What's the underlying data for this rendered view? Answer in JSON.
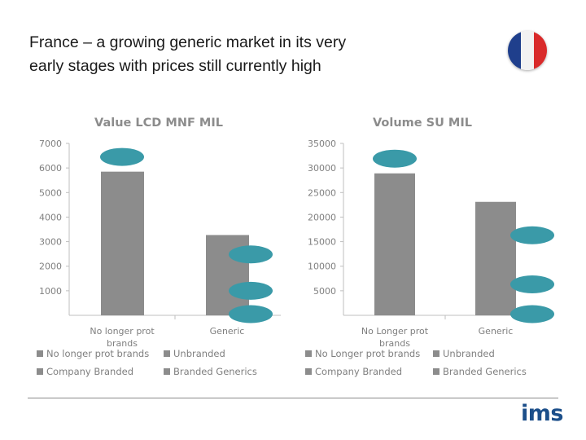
{
  "slide": {
    "title_line1": "France – a growing generic market in its very",
    "title_line2": "early stages with prices still currently high",
    "logo_text": "ims"
  },
  "flag": {
    "colors": [
      "#1f3f8c",
      "#f2f2f2",
      "#d92a2a"
    ]
  },
  "colors": {
    "bar": "#8c8c8c",
    "marker": "#3a9aa8",
    "axis": "#bfbfbf",
    "text": "#7f7f7f"
  },
  "chart_data": [
    {
      "type": "bar",
      "title": "Value LCD MNF MIL",
      "categories": [
        "No longer prot brands",
        "Generic"
      ],
      "category_lines": [
        [
          "No longer prot",
          "brands"
        ],
        [
          "Generic"
        ]
      ],
      "values": [
        5850,
        3270
      ],
      "ylim": [
        0,
        7000
      ],
      "yticks": [
        7000,
        6000,
        5000,
        4000,
        3000,
        2000,
        1000
      ],
      "legend": [
        "No longer prot brands",
        "Unbranded",
        "Company Branded",
        "Branded Generics"
      ],
      "markers": [
        {
          "category": 0,
          "value": 6450
        },
        {
          "category": 1,
          "value": 2480
        },
        {
          "category": 1,
          "value": 1000
        },
        {
          "category": 1,
          "value": 50
        }
      ]
    },
    {
      "type": "bar",
      "title": "Volume SU MIL",
      "categories": [
        "No Longer prot brands",
        "Generic"
      ],
      "category_lines": [
        [
          "No Longer prot",
          "brands"
        ],
        [
          "Generic"
        ]
      ],
      "values": [
        28900,
        23100
      ],
      "ylim": [
        0,
        35000
      ],
      "yticks": [
        35000,
        30000,
        25000,
        20000,
        15000,
        10000,
        5000
      ],
      "legend": [
        "No Longer prot brands",
        "Unbranded",
        "Company Branded",
        "Branded Generics"
      ],
      "markers": [
        {
          "category": 0,
          "value": 31900
        },
        {
          "category": 1,
          "value": 16300
        },
        {
          "category": 1,
          "value": 6300
        },
        {
          "category": 1,
          "value": 250
        }
      ]
    }
  ]
}
